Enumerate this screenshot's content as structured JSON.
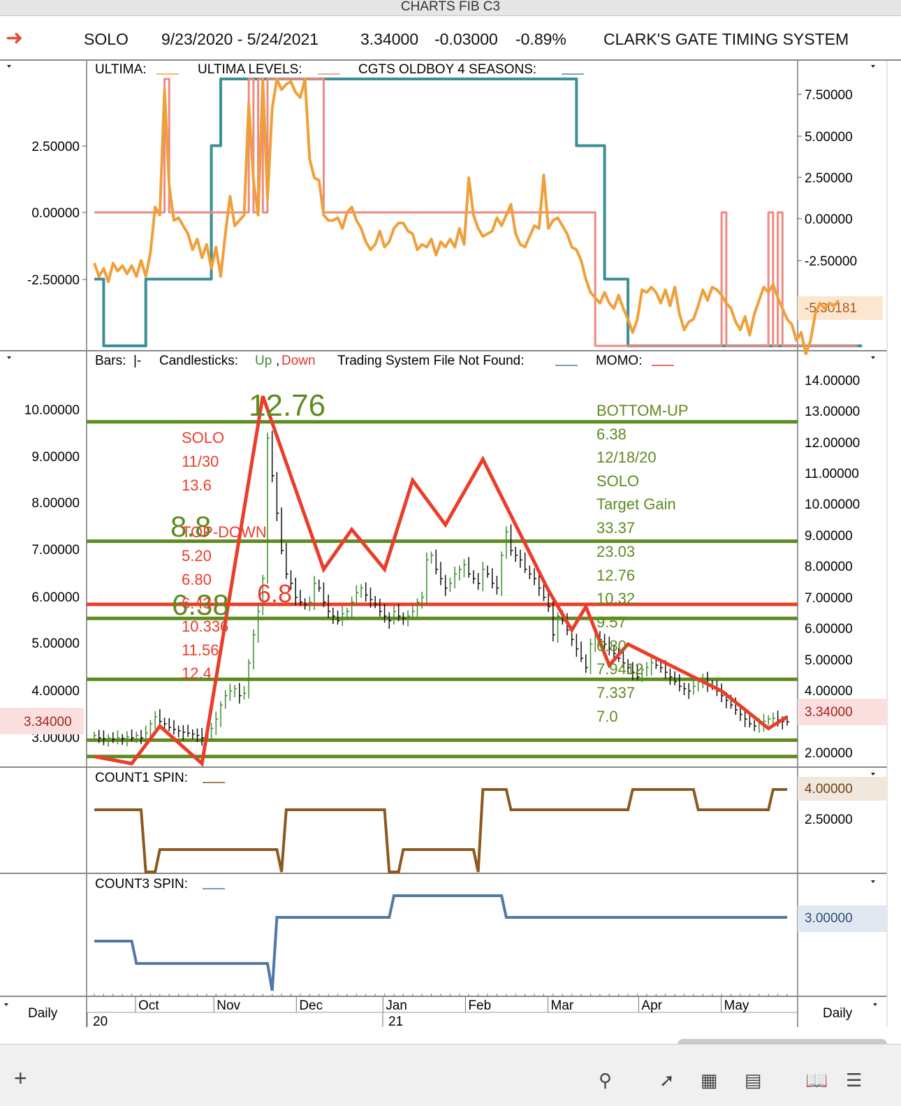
{
  "window_title": "CHARTS FIB C3",
  "header": {
    "symbol": "SOLO",
    "date_range": "9/23/2020 - 5/24/2021",
    "last": "3.34000",
    "change": "-0.03000",
    "change_pct": "-0.89%",
    "system": "CLARK'S GATE TIMING SYSTEM"
  },
  "colors": {
    "ultima": "#f0a03a",
    "ultima_levels": "#ee8a80",
    "oldboy": "#3d8f95",
    "up": "#3c8d2f",
    "down": "#111111",
    "momo": "#ea3d2a",
    "fib_green": "#5e8b20",
    "count1": "#8b5a1e",
    "count3": "#4f79a6"
  },
  "xaxis": {
    "months": [
      "Oct",
      "Nov",
      "Dec",
      "Jan",
      "Feb",
      "Mar",
      "Apr",
      "May"
    ],
    "years": [
      "20",
      "21"
    ],
    "period_left": "Daily",
    "period_right": "Daily"
  },
  "chart_data": [
    {
      "type": "line",
      "panel": "oscillator",
      "legend": [
        "ULTIMA:",
        "ULTIMA LEVELS:",
        "CGTS OLDBOY 4 SEASONS:"
      ],
      "left_ticks": [
        "2.50000",
        "0.00000",
        "-2.50000"
      ],
      "right_ticks": [
        "7.50000",
        "5.00000",
        "2.50000",
        "0.00000",
        "-2.50000"
      ],
      "last_value_label": "-5.30181",
      "ylim_left": [
        -5,
        5
      ],
      "series": [
        {
          "name": "ULTIMA:",
          "values": [
            -1.9,
            -2.4,
            -2.1,
            -2.6,
            -1.9,
            -2.2,
            -2.0,
            -2.3,
            -2.0,
            -2.4,
            -1.8,
            -2.4,
            -1.5,
            0.2,
            -0.1,
            4.6,
            1.0,
            -0.3,
            -0.2,
            -0.5,
            -0.8,
            -1.4,
            -1.0,
            -1.7,
            -1.2,
            -2.1,
            -1.3,
            -2.4,
            -0.8,
            0.6,
            -0.5,
            -0.3,
            -0.1,
            4.1,
            1.2,
            -0.1,
            5.0,
            0.5,
            3.9,
            5.0,
            4.6,
            4.8,
            4.9,
            4.5,
            4.3,
            5.0,
            2.0,
            1.3,
            1.2,
            -0.1,
            -0.3,
            -0.3,
            -0.2,
            -0.6,
            0.0,
            0.2,
            -0.3,
            -0.6,
            -1.1,
            -1.4,
            -1.2,
            -0.7,
            -1.3,
            -1.1,
            -0.6,
            -0.4,
            -0.4,
            -0.7,
            -0.8,
            -1.4,
            -1.2,
            -1.3,
            -1.0,
            -1.6,
            -1.1,
            -1.3,
            -1.0,
            -1.3,
            -0.6,
            -1.2,
            1.3,
            -0.1,
            -0.6,
            -0.9,
            -0.8,
            -0.7,
            -0.2,
            -0.5,
            -0.1,
            0.3,
            -0.8,
            -1.2,
            -1.3,
            -0.9,
            -0.5,
            -0.6,
            1.4,
            -0.6,
            -0.3,
            -0.2,
            -0.5,
            -0.8,
            -1.3,
            -1.4,
            -1.8,
            -2.5,
            -3.0,
            -3.2,
            -3.4,
            -3.0,
            -3.4,
            -3.6,
            -3.1,
            -3.6,
            -4.0,
            -4.5,
            -4.0,
            -2.9,
            -3.0,
            -2.8,
            -3.0,
            -3.4,
            -2.9,
            -3.5,
            -2.8,
            -3.8,
            -4.4,
            -4.1,
            -4.0,
            -3.5,
            -2.9,
            -3.3,
            -2.8,
            -2.9,
            -3.1,
            -3.4,
            -3.6,
            -4.1,
            -4.4,
            -3.9,
            -4.6,
            -3.8,
            -3.3,
            -2.8,
            -3.0,
            -2.7,
            -3.2,
            -3.6,
            -4.0,
            -4.2,
            -4.8,
            -4.5,
            -5.3,
            -4.8,
            -3.8,
            -3.4,
            -3.6,
            -3.4,
            -3.5,
            -3.3
          ]
        },
        {
          "name": "ULTIMA LEVELS:",
          "values": [
            0,
            0,
            0,
            0,
            0,
            0,
            0,
            0,
            0,
            0,
            0,
            0,
            0,
            0,
            0,
            5,
            0,
            0,
            0,
            0,
            0,
            0,
            0,
            0,
            0,
            0,
            0,
            0,
            0,
            0,
            0,
            0,
            0,
            5,
            0,
            5,
            0,
            5,
            5,
            5,
            5,
            5,
            5,
            5,
            5,
            5,
            5,
            5,
            5,
            0,
            0,
            0,
            0,
            0,
            0,
            0,
            0,
            0,
            0,
            0,
            0,
            0,
            0,
            0,
            0,
            0,
            0,
            0,
            0,
            0,
            0,
            0,
            0,
            0,
            0,
            0,
            0,
            0,
            0,
            0,
            0,
            0,
            0,
            0,
            0,
            0,
            0,
            0,
            0,
            0,
            0,
            0,
            0,
            0,
            0,
            0,
            0,
            0,
            0,
            0,
            0,
            0,
            0,
            0,
            0,
            0,
            0,
            -5,
            -5,
            -5,
            -5,
            -5,
            -5,
            -5,
            -5,
            -5,
            -5,
            -5,
            -5,
            -5,
            -5,
            -5,
            -5,
            -5,
            -5,
            -5,
            -5,
            -5,
            -5,
            -5,
            -5,
            -5,
            -5,
            -5,
            0,
            -5,
            -5,
            -5,
            -5,
            -5,
            -5,
            -5,
            -5,
            -5,
            0,
            -5,
            0,
            -5,
            -5,
            -5,
            -5,
            -5,
            -5,
            -5,
            -5,
            -5,
            -5,
            -5,
            -5,
            -5,
            -5,
            -5,
            -5,
            -5
          ]
        },
        {
          "name": "CGTS OLDBOY 4 SEASONS:",
          "values": [
            -2.5,
            -2.5,
            -5,
            -5,
            -5,
            -5,
            -5,
            -5,
            -5,
            -5,
            -5,
            -2.5,
            -2.5,
            -2.5,
            -2.5,
            -2.5,
            -2.5,
            -2.5,
            -2.5,
            -2.5,
            -2.5,
            -2.5,
            -2.5,
            -2.5,
            -2.5,
            2.5,
            2.5,
            5,
            5,
            5,
            5,
            5,
            5,
            5,
            5,
            5,
            5,
            5,
            5,
            5,
            5,
            5,
            5,
            5,
            5,
            5,
            5,
            5,
            5,
            5,
            5,
            5,
            5,
            5,
            5,
            5,
            5,
            5,
            5,
            5,
            5,
            5,
            5,
            5,
            5,
            5,
            5,
            5,
            5,
            5,
            5,
            5,
            5,
            5,
            5,
            5,
            5,
            5,
            5,
            5,
            5,
            5,
            5,
            5,
            5,
            5,
            5,
            5,
            5,
            5,
            5,
            5,
            5,
            5,
            5,
            5,
            5,
            5,
            5,
            5,
            5,
            5,
            5,
            2.5,
            2.5,
            2.5,
            2.5,
            2.5,
            2.5,
            -2.5,
            -2.5,
            -2.5,
            -2.5,
            -2.5,
            -5,
            -5,
            -5,
            -5,
            -5,
            -5,
            -5,
            -5,
            -5,
            -5,
            -5,
            -5,
            -5,
            -5,
            -5,
            -5,
            -5,
            -5,
            -5,
            -5,
            -5,
            -5,
            -5,
            -5,
            -5,
            -5,
            -5,
            -5,
            -5,
            -5,
            -5,
            -5,
            -5,
            -5,
            -5,
            -5,
            -5,
            -5,
            -5,
            -5,
            -5,
            -5,
            -5,
            -5,
            -5,
            -5,
            -5,
            -5,
            -5,
            -5,
            -5
          ]
        }
      ]
    },
    {
      "type": "candlestick",
      "panel": "price",
      "legend": {
        "bars": "Bars:",
        "bars_glyph": "|-",
        "candles": "Candlesticks:",
        "up": "Up",
        "down": "Down",
        "system": "Trading System File Not Found:",
        "momo": "MOMO:"
      },
      "left_ticks": [
        "10.00000",
        "9.00000",
        "8.00000",
        "7.00000",
        "6.00000",
        "5.00000",
        "4.00000",
        "3.00000"
      ],
      "right_ticks": [
        "14.00000",
        "13.00000",
        "12.00000",
        "11.00000",
        "10.00000",
        "9.00000",
        "8.00000",
        "7.00000",
        "6.00000",
        "5.00000",
        "4.00000",
        "2.00000"
      ],
      "last_price_label": "3.34000",
      "ylim_left": [
        2.5,
        10.5
      ],
      "close": [
        3.05,
        3.0,
        2.98,
        3.0,
        2.97,
        3.0,
        2.99,
        3.02,
        3.0,
        3.05,
        3.0,
        3.1,
        3.3,
        3.45,
        3.35,
        3.3,
        3.22,
        3.18,
        3.15,
        3.12,
        3.1,
        3.08,
        3.05,
        3.0,
        3.02,
        3.2,
        3.4,
        3.7,
        3.9,
        4.0,
        4.05,
        3.9,
        3.95,
        4.6,
        5.2,
        5.7,
        6.4,
        9.4,
        8.6,
        7.8,
        7.0,
        6.5,
        6.3,
        6.0,
        5.9,
        5.85,
        5.9,
        6.3,
        6.2,
        5.9,
        5.7,
        5.6,
        5.5,
        5.65,
        5.7,
        5.9,
        6.1,
        6.2,
        6.05,
        5.95,
        5.85,
        5.7,
        5.6,
        5.5,
        5.7,
        5.6,
        5.55,
        5.6,
        5.7,
        5.9,
        6.0,
        6.8,
        6.9,
        6.6,
        6.4,
        6.2,
        6.3,
        6.5,
        6.6,
        6.7,
        6.5,
        6.4,
        6.3,
        6.6,
        6.5,
        6.3,
        6.2,
        6.9,
        7.4,
        7.0,
        6.9,
        6.8,
        6.6,
        6.5,
        6.4,
        6.2,
        6.0,
        5.8,
        5.2,
        5.6,
        5.5,
        5.3,
        5.1,
        4.9,
        4.7,
        4.5,
        5.0,
        5.2,
        5.1,
        5.0,
        4.9,
        4.8,
        4.7,
        4.6,
        4.5,
        4.4,
        4.3,
        4.45,
        4.5,
        4.6,
        4.55,
        4.5,
        4.4,
        4.3,
        4.2,
        4.1,
        4.05,
        4.0,
        4.1,
        4.2,
        4.25,
        4.15,
        4.1,
        4.0,
        3.9,
        3.8,
        3.7,
        3.6,
        3.5,
        3.4,
        3.3,
        3.25,
        3.3,
        3.35,
        3.4,
        3.42,
        3.38,
        3.35,
        3.34
      ],
      "fib_levels": [
        {
          "value": 9.75,
          "color": "green"
        },
        {
          "value": 7.2,
          "color": "green"
        },
        {
          "value": 5.85,
          "color": "red"
        },
        {
          "value": 5.55,
          "color": "green"
        },
        {
          "value": 4.25,
          "color": "green"
        },
        {
          "value": 2.95,
          "color": "green"
        },
        {
          "value": 2.6,
          "color": "green"
        }
      ],
      "momo": [
        [
          0,
          2.6
        ],
        [
          8,
          2.45
        ],
        [
          14,
          3.25
        ],
        [
          23,
          2.45
        ],
        [
          36,
          10.3
        ],
        [
          49,
          6.6
        ],
        [
          55,
          7.45
        ],
        [
          62,
          6.6
        ],
        [
          68,
          8.5
        ],
        [
          75,
          7.55
        ],
        [
          83,
          8.95
        ],
        [
          97,
          6.15
        ],
        [
          102,
          5.3
        ],
        [
          105,
          5.8
        ],
        [
          110,
          4.55
        ],
        [
          114,
          5.0
        ],
        [
          134,
          4.0
        ],
        [
          144,
          3.2
        ],
        [
          148,
          3.45
        ]
      ],
      "annotations": {
        "top_label": "12.76",
        "fib_88": "8.8",
        "fib_638": "6.38",
        "fib_68": "6.8",
        "top_down": [
          "SOLO",
          "11/30",
          "13.6",
          "TOP-DOWN",
          "5.20",
          "6.80",
          "6.43",
          "10.336",
          "11.56",
          "12.4"
        ],
        "bottom_up": [
          "BOTTOM-UP",
          "6.38",
          "12/18/20",
          "SOLO",
          "Target Gain",
          "33.37",
          "23.03",
          "12.76",
          "10.32",
          "9.57",
          "6.80",
          "7.9412",
          "7.337",
          "7.0"
        ]
      }
    },
    {
      "type": "line",
      "panel": "count1",
      "legend": "COUNT1 SPIN:",
      "right_ticks": [
        "2.50000"
      ],
      "last_value_label": "4.00000",
      "segments": [
        [
          0,
          3.0
        ],
        [
          10,
          3.0
        ],
        [
          11,
          1.0
        ],
        [
          13,
          1.0
        ],
        [
          14,
          2.0
        ],
        [
          39,
          2.0
        ],
        [
          40,
          1.0
        ],
        [
          41,
          3.0
        ],
        [
          62,
          3.0
        ],
        [
          63,
          1.0
        ],
        [
          65,
          1.0
        ],
        [
          66,
          2.0
        ],
        [
          81,
          2.0
        ],
        [
          82,
          1.0
        ],
        [
          83,
          4.0
        ],
        [
          88,
          4.0
        ],
        [
          89,
          3.0
        ],
        [
          114,
          3.0
        ],
        [
          115,
          4.0
        ],
        [
          128,
          4.0
        ],
        [
          129,
          3.0
        ],
        [
          144,
          3.0
        ],
        [
          145,
          4.0
        ],
        [
          148,
          4.0
        ]
      ]
    },
    {
      "type": "line",
      "panel": "count3",
      "legend": "COUNT3 SPIN:",
      "last_value_label": "3.00000",
      "segments": [
        [
          0,
          2.0
        ],
        [
          8,
          2.0
        ],
        [
          9,
          1.0
        ],
        [
          37,
          1.0
        ],
        [
          38,
          0.0
        ],
        [
          39,
          3.0
        ],
        [
          63,
          3.0
        ],
        [
          64,
          4.0
        ],
        [
          87,
          4.0
        ],
        [
          88,
          3.0
        ],
        [
          148,
          3.0
        ]
      ]
    }
  ]
}
